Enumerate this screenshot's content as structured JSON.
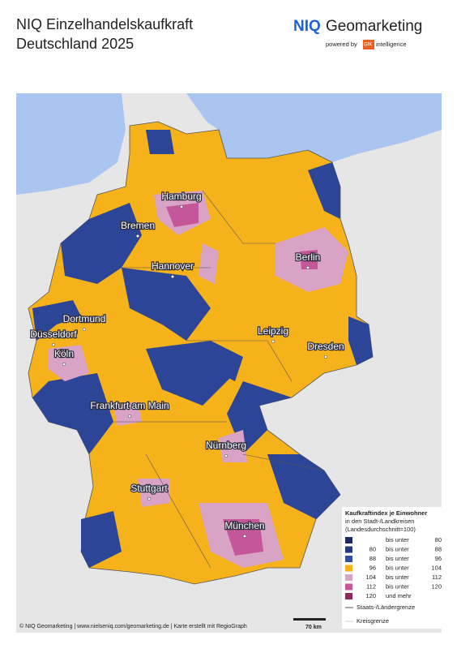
{
  "header": {
    "title_line1": "NIQ Einzelhandelskaufkraft",
    "title_line2": "Deutschland 2025"
  },
  "logo": {
    "brand": "NIQ",
    "name": "Geomarketing",
    "powered_by": "powered by",
    "partner": "GfK",
    "partner_suffix": "intelligence"
  },
  "cities": [
    "Hamburg",
    "Bremen",
    "Hannover",
    "Berlin",
    "Dortmund",
    "Düsseldorf",
    "Köln",
    "Leipzig",
    "Dresden",
    "Frankfurt am Main",
    "Nürnberg",
    "Stuttgart",
    "München"
  ],
  "legend": {
    "title": "Kaufkraftindex je Einwohner",
    "subtitle1": "in den Stadt-/Landkreisen",
    "subtitle2": "(Landesdurchschnitt=100)",
    "classes": [
      {
        "label": "bis unter",
        "to": 80,
        "color": "#1c2a5c"
      },
      {
        "from": 80,
        "label": "bis unter",
        "to": 88,
        "color": "#253a7e"
      },
      {
        "from": 88,
        "label": "bis unter",
        "to": 96,
        "color": "#3350a0"
      },
      {
        "from": 96,
        "label": "bis unter",
        "to": 104,
        "color": "#f6b21b"
      },
      {
        "from": 104,
        "label": "bis unter",
        "to": 112,
        "color": "#d9a3c6"
      },
      {
        "from": 112,
        "label": "bis unter",
        "to": 120,
        "color": "#c4579a"
      },
      {
        "from": 120,
        "label": "und mehr",
        "color": "#8c2a5f"
      }
    ],
    "state_border": "Staats-/Ländergrenze",
    "district_border": "Kreisgrenze"
  },
  "scale": "70 km",
  "footer": "© NIQ Geomarketing | www.nielseniq.com/geomarketing.de | Karte erstellt mit RegioGraph"
}
